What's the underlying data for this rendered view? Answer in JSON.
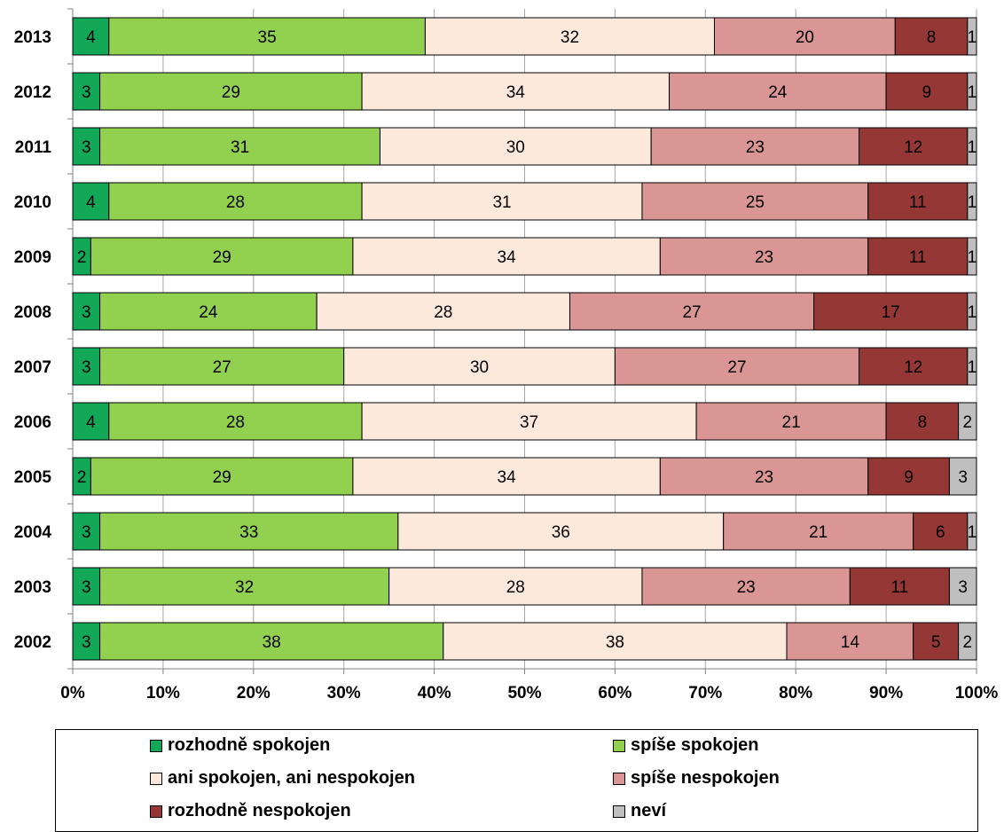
{
  "chart_data": {
    "type": "bar",
    "orientation": "horizontal",
    "stacked": "percent",
    "categories": [
      "2013",
      "2012",
      "2011",
      "2010",
      "2009",
      "2008",
      "2007",
      "2006",
      "2005",
      "2004",
      "2003",
      "2002"
    ],
    "series": [
      {
        "name": "rozhodně spokojen",
        "color": "#13a858",
        "values": [
          4,
          3,
          3,
          4,
          2,
          3,
          3,
          4,
          2,
          3,
          3,
          3
        ]
      },
      {
        "name": "spíše spokojen",
        "color": "#92d050",
        "values": [
          35,
          29,
          31,
          28,
          29,
          24,
          27,
          28,
          29,
          33,
          32,
          38
        ]
      },
      {
        "name": "ani spokojen, ani nespokojen",
        "color": "#fde9dc",
        "values": [
          32,
          34,
          30,
          31,
          34,
          28,
          30,
          37,
          34,
          36,
          28,
          38
        ]
      },
      {
        "name": "spíše nespokojen",
        "color": "#d99694",
        "values": [
          20,
          24,
          23,
          25,
          23,
          27,
          27,
          21,
          23,
          21,
          23,
          14
        ]
      },
      {
        "name": "rozhodně nespokojen",
        "color": "#953735",
        "values": [
          8,
          9,
          12,
          11,
          11,
          17,
          12,
          8,
          9,
          6,
          11,
          5
        ]
      },
      {
        "name": "neví",
        "color": "#bfbfbf",
        "values": [
          1,
          1,
          1,
          1,
          1,
          1,
          1,
          2,
          3,
          1,
          3,
          2
        ]
      }
    ],
    "xticks": [
      "0%",
      "10%",
      "20%",
      "30%",
      "40%",
      "50%",
      "60%",
      "70%",
      "80%",
      "90%",
      "100%"
    ],
    "xlim": [
      0,
      100
    ],
    "grid": true,
    "legend_position": "bottom"
  }
}
